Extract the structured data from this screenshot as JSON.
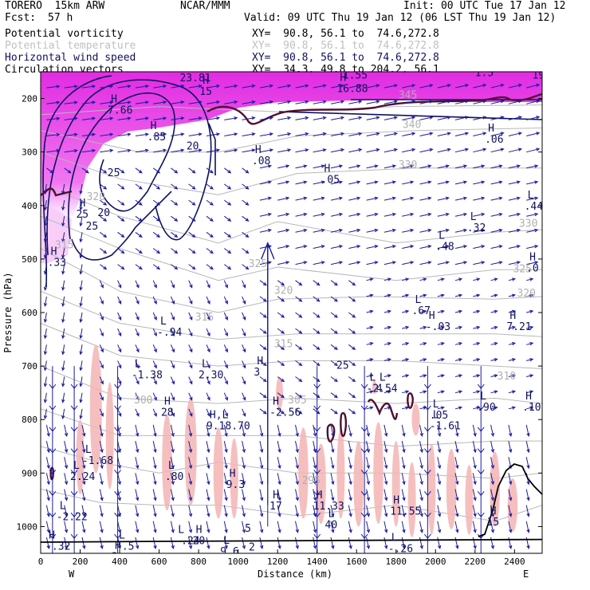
{
  "header": {
    "model": "TORERO  15km ARW",
    "org": "NCAR/MMM",
    "init": "Init: 00 UTC Tue 17 Jan 12",
    "fcst_label": "Fcst:",
    "fcst_value": "57 h",
    "valid": "Valid: 09 UTC Thu 19 Jan 12 (06 LST Thu 19 Jan 12)"
  },
  "legend": [
    {
      "label": "Potential vorticity",
      "xy": "XY=  90.8, 56.1 to  74.6,272.8",
      "color": "#000000"
    },
    {
      "label": "Potential temperature",
      "xy": "XY=  90.8, 56.1 to  74.6,272.8",
      "color": "#c0c0c0"
    },
    {
      "label": "Horizontal wind speed",
      "xy": "XY=  90.8, 56.1 to  74.6,272.8",
      "color": "#101060"
    },
    {
      "label": "Circulation vectors",
      "xy": "XY=  34.3, 49.8 to 204.2, 56.1",
      "color": "#000000"
    }
  ],
  "colors": {
    "pv_shade": "#e020e0",
    "pv_light": "#f4b0f4",
    "pink": "#f4b4b4",
    "wind_contour": "#101060",
    "theta": "#b8b8b8",
    "vector": "#1a1aa0",
    "terrain": "#000000",
    "pv_line": "#501030"
  },
  "chart_data": {
    "type": "cross-section",
    "title": "Potential vorticity / Potential temperature / Horizontal wind speed / Circulation vectors",
    "xlabel": "Distance (km)",
    "ylabel": "Pressure (hPa)",
    "xlim": [
      0,
      2540
    ],
    "ylim": [
      1050,
      150
    ],
    "x_ticks": [
      0,
      200,
      400,
      600,
      800,
      1000,
      1200,
      1400,
      1600,
      1800,
      2000,
      2200,
      2400
    ],
    "y_ticks": [
      200,
      300,
      400,
      500,
      600,
      700,
      800,
      900,
      1000
    ],
    "x_ends": [
      "W",
      "E"
    ],
    "theta_labels": [
      {
        "text": "345",
        "x": 1860,
        "y": 200
      },
      {
        "text": "340",
        "x": 1880,
        "y": 255
      },
      {
        "text": "330",
        "x": 1860,
        "y": 330
      },
      {
        "text": "325",
        "x": 1100,
        "y": 515
      },
      {
        "text": "320",
        "x": 1230,
        "y": 565
      },
      {
        "text": "315",
        "x": 830,
        "y": 615
      },
      {
        "text": "315",
        "x": 1230,
        "y": 665
      },
      {
        "text": "310",
        "x": 2360,
        "y": 725
      },
      {
        "text": "305",
        "x": 1300,
        "y": 770
      },
      {
        "text": "300",
        "x": 520,
        "y": 770
      },
      {
        "text": "295",
        "x": 1370,
        "y": 920
      },
      {
        "text": "295",
        "x": 2260,
        "y": 1065
      },
      {
        "text": "320",
        "x": 280,
        "y": 390
      },
      {
        "text": "315",
        "x": 120,
        "y": 480
      },
      {
        "text": "330",
        "x": 2470,
        "y": 440
      },
      {
        "text": "325",
        "x": 2440,
        "y": 525
      },
      {
        "text": "320",
        "x": 2460,
        "y": 570
      }
    ],
    "wind_labels": [
      {
        "text": "20",
        "x": 770,
        "y": 295
      },
      {
        "text": "25",
        "x": 370,
        "y": 345
      },
      {
        "text": "20",
        "x": 320,
        "y": 420
      },
      {
        "text": "25",
        "x": 260,
        "y": 445
      },
      {
        "text": "25",
        "x": 1530,
        "y": 705
      },
      {
        "text": "5",
        "x": 1050,
        "y": 1010
      },
      {
        "text": "2",
        "x": 1070,
        "y": 1045
      }
    ],
    "highs_lows": [
      {
        "kind": "H",
        "value": "23.81",
        "x": 745,
        "y": 165
      },
      {
        "kind": "H",
        "value": "18.54",
        "x": 1120,
        "y": 145
      },
      {
        "kind": "L",
        "value": "1.55",
        "x": 1570,
        "y": 160
      },
      {
        "kind": "H",
        "value": "16.88",
        "x": 1540,
        "y": 185
      },
      {
        "kind": "H",
        "value": "1.5",
        "x": 2240,
        "y": 155
      },
      {
        "kind": "H",
        "value": "19",
        "x": 2530,
        "y": 160
      },
      {
        "kind": "H",
        "value": "7.66",
        "x": 380,
        "y": 225
      },
      {
        "kind": "H",
        "value": "15",
        "x": 845,
        "y": 190
      },
      {
        "kind": "H",
        "value": ".85",
        "x": 580,
        "y": 275
      },
      {
        "kind": "H",
        "value": ".08",
        "x": 1110,
        "y": 320
      },
      {
        "kind": "H",
        "value": ".05",
        "x": 1460,
        "y": 355
      },
      {
        "kind": "H",
        "value": ".06",
        "x": 2290,
        "y": 280
      },
      {
        "kind": "L",
        "value": ".44",
        "x": 2490,
        "y": 405
      },
      {
        "kind": "L",
        "value": ".32",
        "x": 2200,
        "y": 445
      },
      {
        "kind": "L",
        "value": ".48",
        "x": 2040,
        "y": 480
      },
      {
        "kind": "H",
        "value": ".33",
        "x": 75,
        "y": 510
      },
      {
        "kind": "H",
        "value": ".0",
        "x": 2500,
        "y": 520
      },
      {
        "kind": "H",
        "value": "25",
        "x": 220,
        "y": 420
      },
      {
        "kind": "L",
        "value": ".67",
        "x": 1920,
        "y": 600
      },
      {
        "kind": "H",
        "value": "-.03",
        "x": 1990,
        "y": 630
      },
      {
        "kind": "H",
        "value": "7.21",
        "x": 2400,
        "y": 630
      },
      {
        "kind": "L",
        "value": "-.94",
        "x": 630,
        "y": 640
      },
      {
        "kind": "L",
        "value": "-1.38",
        "x": 500,
        "y": 720
      },
      {
        "kind": "L",
        "value": "2.30",
        "x": 840,
        "y": 720
      },
      {
        "kind": "H",
        "value": "3",
        "x": 1120,
        "y": 715
      },
      {
        "kind": "L",
        "value": "-2.54",
        "x": 1690,
        "y": 745
      },
      {
        "kind": "L",
        "value": "4",
        "x": 1740,
        "y": 745
      },
      {
        "kind": "H",
        "value": "28",
        "x": 650,
        "y": 790
      },
      {
        "kind": "H",
        "value": "-2.56",
        "x": 1200,
        "y": 790
      },
      {
        "kind": "L",
        "value": ".90",
        "x": 2250,
        "y": 780
      },
      {
        "kind": "H",
        "value": ".10",
        "x": 2480,
        "y": 780
      },
      {
        "kind": "L",
        "value": ".05",
        "x": 2010,
        "y": 795
      },
      {
        "kind": "L",
        "value": "-1.61",
        "x": 2010,
        "y": 815
      },
      {
        "kind": "H,L",
        "value": "9.18.70",
        "x": 880,
        "y": 815
      },
      {
        "kind": "L",
        "value": "-1.68",
        "x": 250,
        "y": 880
      },
      {
        "kind": "L",
        "value": "2.24",
        "x": 190,
        "y": 910
      },
      {
        "kind": "L",
        "value": ".80",
        "x": 670,
        "y": 910
      },
      {
        "kind": "H",
        "value": "9.3",
        "x": 980,
        "y": 925
      },
      {
        "kind": "H",
        "value": "17",
        "x": 1200,
        "y": 965
      },
      {
        "kind": "H",
        "value": "11.33",
        "x": 1420,
        "y": 965
      },
      {
        "kind": "H",
        "value": "11.55",
        "x": 1810,
        "y": 975
      },
      {
        "kind": "L",
        "value": "-2.22",
        "x": 120,
        "y": 985
      },
      {
        "kind": "L",
        "value": "-.24",
        "x": 720,
        "y": 1030
      },
      {
        "kind": "H",
        "value": "20",
        "x": 810,
        "y": 1030
      },
      {
        "kind": "L",
        "value": "40",
        "x": 1480,
        "y": 1000
      },
      {
        "kind": "H",
        "value": "15",
        "x": 2300,
        "y": 995
      },
      {
        "kind": "H",
        "value": "-.32",
        "x": 65,
        "y": 1040
      },
      {
        "kind": "L",
        "value": "9.6",
        "x": 950,
        "y": 1050
      },
      {
        "kind": "L",
        "value": "-.26",
        "x": 1800,
        "y": 1045
      },
      {
        "kind": "L",
        "value": "-.5",
        "x": 420,
        "y": 1040
      },
      {
        "kind": "H",
        "value": "2",
        "x": 400,
        "y": 1060
      }
    ]
  }
}
